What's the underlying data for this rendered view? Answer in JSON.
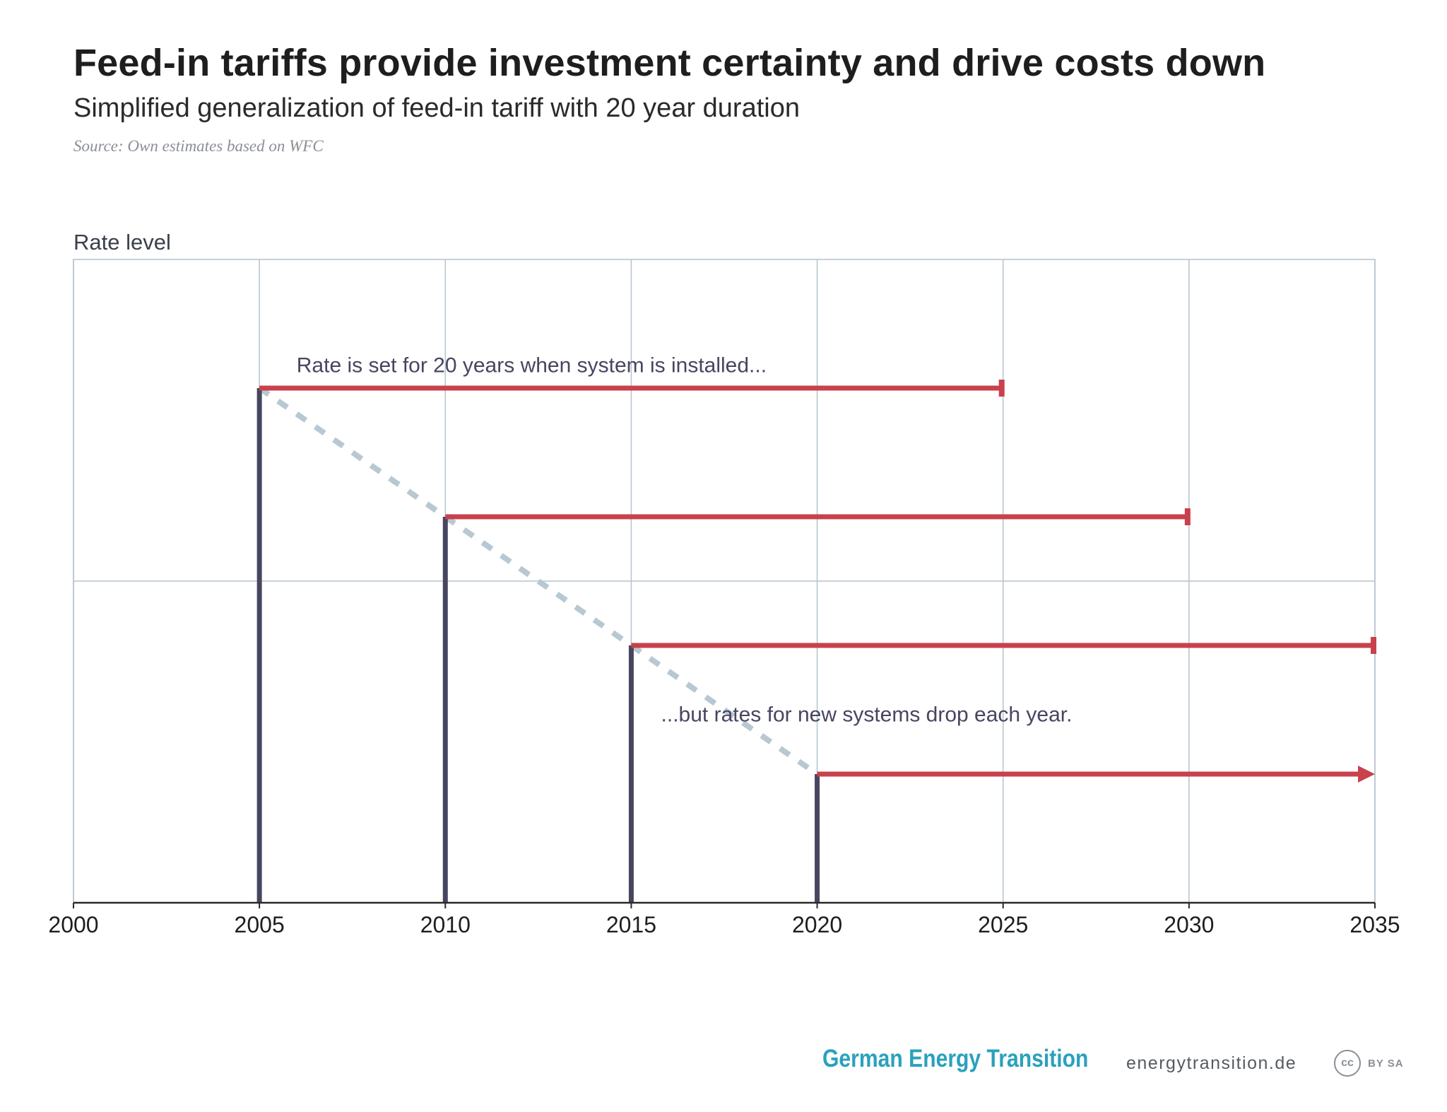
{
  "header": {
    "title": "Feed-in tariffs provide investment certainty and drive costs down",
    "subtitle": "Simplified generalization of feed-in tariff with 20 year duration",
    "source": "Source: Own estimates based on WFC"
  },
  "chart_data": {
    "type": "line",
    "title": "Feed-in tariffs provide investment certainty and drive costs down",
    "subtitle": "Simplified generalization of feed-in tariff with 20 year duration",
    "ylabel": "Rate level",
    "xlabel": "",
    "xlim": [
      2000,
      2035
    ],
    "ylim": [
      0,
      100
    ],
    "x_ticks": [
      2000,
      2005,
      2010,
      2015,
      2020,
      2025,
      2030,
      2035
    ],
    "grid": true,
    "y_gridlines": [
      50
    ],
    "installations": [
      {
        "year": 2005,
        "rate": 80,
        "end_year": 2025,
        "continues": false
      },
      {
        "year": 2010,
        "rate": 60,
        "end_year": 2030,
        "continues": false
      },
      {
        "year": 2015,
        "rate": 40,
        "end_year": 2035,
        "continues": false
      },
      {
        "year": 2020,
        "rate": 20,
        "end_year": 2035,
        "continues": true
      }
    ],
    "declining_rate_trend": {
      "x": [
        2005,
        2020
      ],
      "y": [
        80,
        20
      ],
      "style": "dashed"
    },
    "annotations": [
      {
        "text": "Rate is set for 20 years when system is installed...",
        "year": 2006,
        "rate": 82.5
      },
      {
        "text": "...but rates for new systems drop each year.",
        "year": 2015.8,
        "rate": 28.2
      }
    ],
    "colors": {
      "tariff_line": "#c8414b",
      "install_bar": "#474660",
      "trend": "#b8c8d3",
      "grid": "#b4c3cf",
      "axis": "#2a2a2a",
      "annotation_text": "#474660"
    }
  },
  "footer": {
    "brand": "German Energy Transition",
    "url": "energytransition.de",
    "license_icon": "cc-icon",
    "license_text": "BY SA"
  }
}
